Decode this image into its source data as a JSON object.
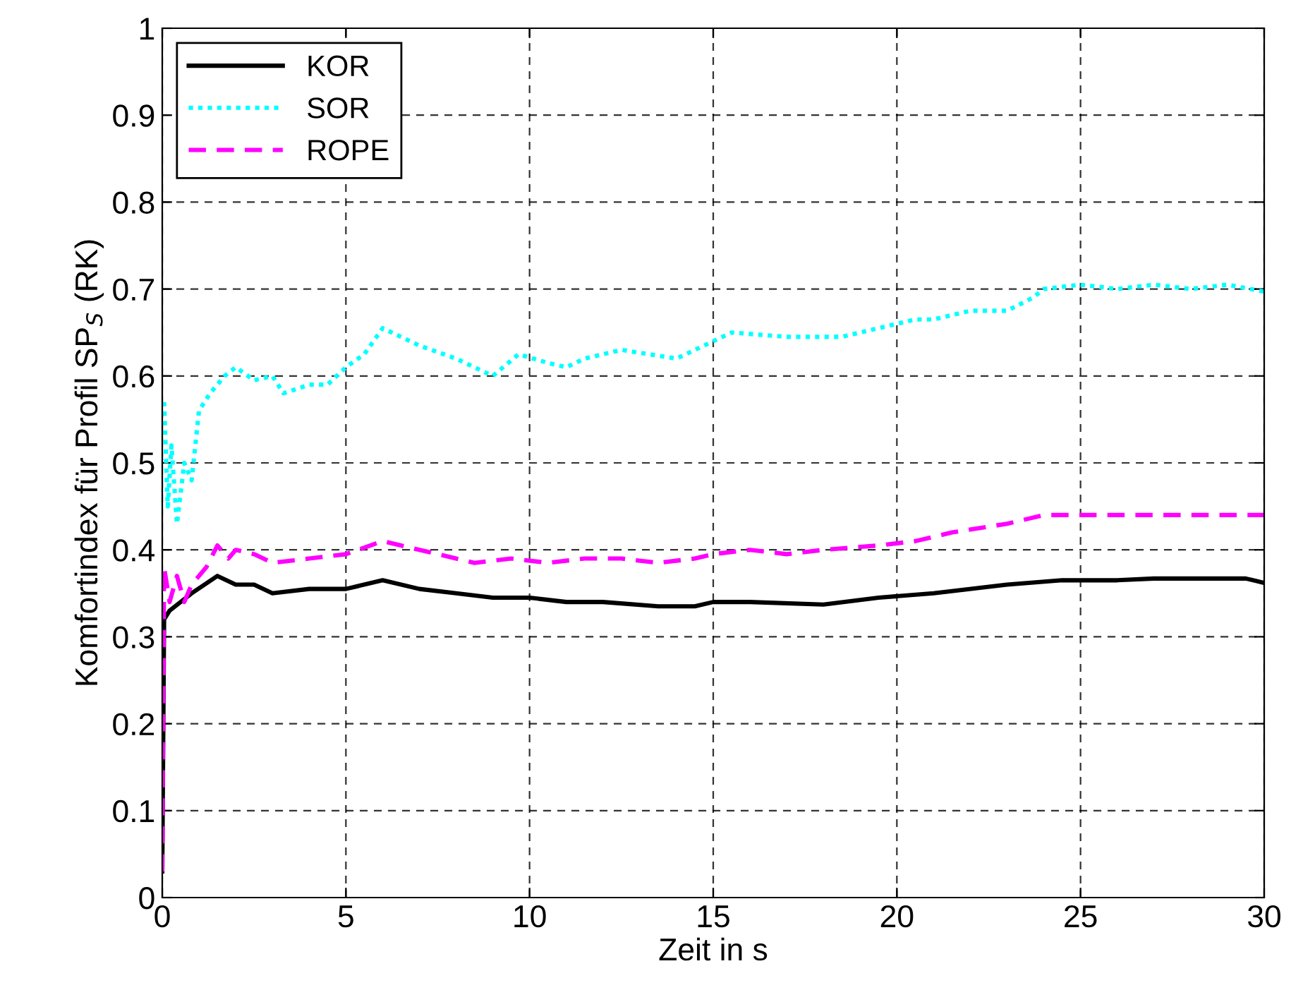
{
  "chart_data": {
    "type": "line",
    "xlabel": "Zeit in s",
    "ylabel": "Komfortindex für Profil SP$_{S}$ (RK)",
    "xlim": [
      0,
      30
    ],
    "xticks": [
      0,
      5,
      10,
      15,
      20,
      25,
      30
    ],
    "ylim": [
      0,
      1
    ],
    "yticks": [
      0,
      0.1,
      0.2,
      0.3,
      0.4,
      0.5,
      0.6,
      0.7,
      0.8,
      0.9,
      1
    ],
    "grid": true,
    "legend": "top left",
    "series": [
      {
        "name": "KOR",
        "color": "#000000",
        "line_style": "solid",
        "x": [
          0,
          0.05,
          0.2,
          0.5,
          0.8,
          1.5,
          2,
          2.5,
          3,
          4,
          5,
          6,
          7,
          8,
          9,
          10,
          11,
          12,
          13.5,
          14.5,
          15,
          16,
          18,
          19.5,
          21,
          23,
          24.5,
          26,
          27,
          29.5,
          30
        ],
        "values": [
          0.03,
          0.32,
          0.33,
          0.34,
          0.35,
          0.37,
          0.36,
          0.36,
          0.35,
          0.355,
          0.355,
          0.365,
          0.355,
          0.35,
          0.345,
          0.345,
          0.34,
          0.34,
          0.335,
          0.335,
          0.34,
          0.34,
          0.337,
          0.345,
          0.35,
          0.36,
          0.365,
          0.365,
          0.367,
          0.367,
          0.362
        ]
      },
      {
        "name": "SOR",
        "color": "#00ffff",
        "line_style": "dotted",
        "x": [
          0.05,
          0.15,
          0.25,
          0.4,
          0.6,
          0.8,
          1,
          1.3,
          1.7,
          2,
          2.5,
          3,
          3.3,
          4,
          4.5,
          5,
          5.5,
          6,
          7,
          8,
          9,
          9.7,
          10.5,
          11,
          11.5,
          12.5,
          14,
          14.5,
          15.5,
          17,
          18.5,
          19.5,
          20.5,
          21,
          22,
          23,
          23.7,
          24,
          25,
          26,
          27,
          28,
          29,
          30
        ],
        "values": [
          0.57,
          0.45,
          0.52,
          0.43,
          0.5,
          0.48,
          0.56,
          0.58,
          0.6,
          0.61,
          0.595,
          0.6,
          0.58,
          0.59,
          0.59,
          0.61,
          0.625,
          0.655,
          0.635,
          0.62,
          0.6,
          0.625,
          0.615,
          0.61,
          0.62,
          0.63,
          0.62,
          0.63,
          0.65,
          0.645,
          0.645,
          0.655,
          0.665,
          0.665,
          0.675,
          0.675,
          0.69,
          0.7,
          0.705,
          0.7,
          0.705,
          0.7,
          0.705,
          0.697
        ]
      },
      {
        "name": "ROPE",
        "color": "#ff00ff",
        "line_style": "dashed",
        "x": [
          0,
          0.05,
          0.2,
          0.4,
          0.6,
          0.8,
          1.2,
          1.5,
          1.8,
          2,
          2.5,
          3,
          4,
          5,
          6,
          6.5,
          7.5,
          8.5,
          9.5,
          10.5,
          11.5,
          12.5,
          13.5,
          14.5,
          15,
          16,
          17,
          18,
          19.5,
          20.5,
          21.5,
          23,
          24,
          26,
          28,
          30
        ],
        "values": [
          0.03,
          0.38,
          0.34,
          0.37,
          0.34,
          0.36,
          0.38,
          0.405,
          0.39,
          0.4,
          0.395,
          0.385,
          0.39,
          0.395,
          0.41,
          0.405,
          0.395,
          0.385,
          0.39,
          0.385,
          0.39,
          0.39,
          0.385,
          0.39,
          0.395,
          0.4,
          0.395,
          0.4,
          0.405,
          0.41,
          0.42,
          0.43,
          0.44,
          0.44,
          0.44,
          0.44
        ]
      }
    ]
  }
}
